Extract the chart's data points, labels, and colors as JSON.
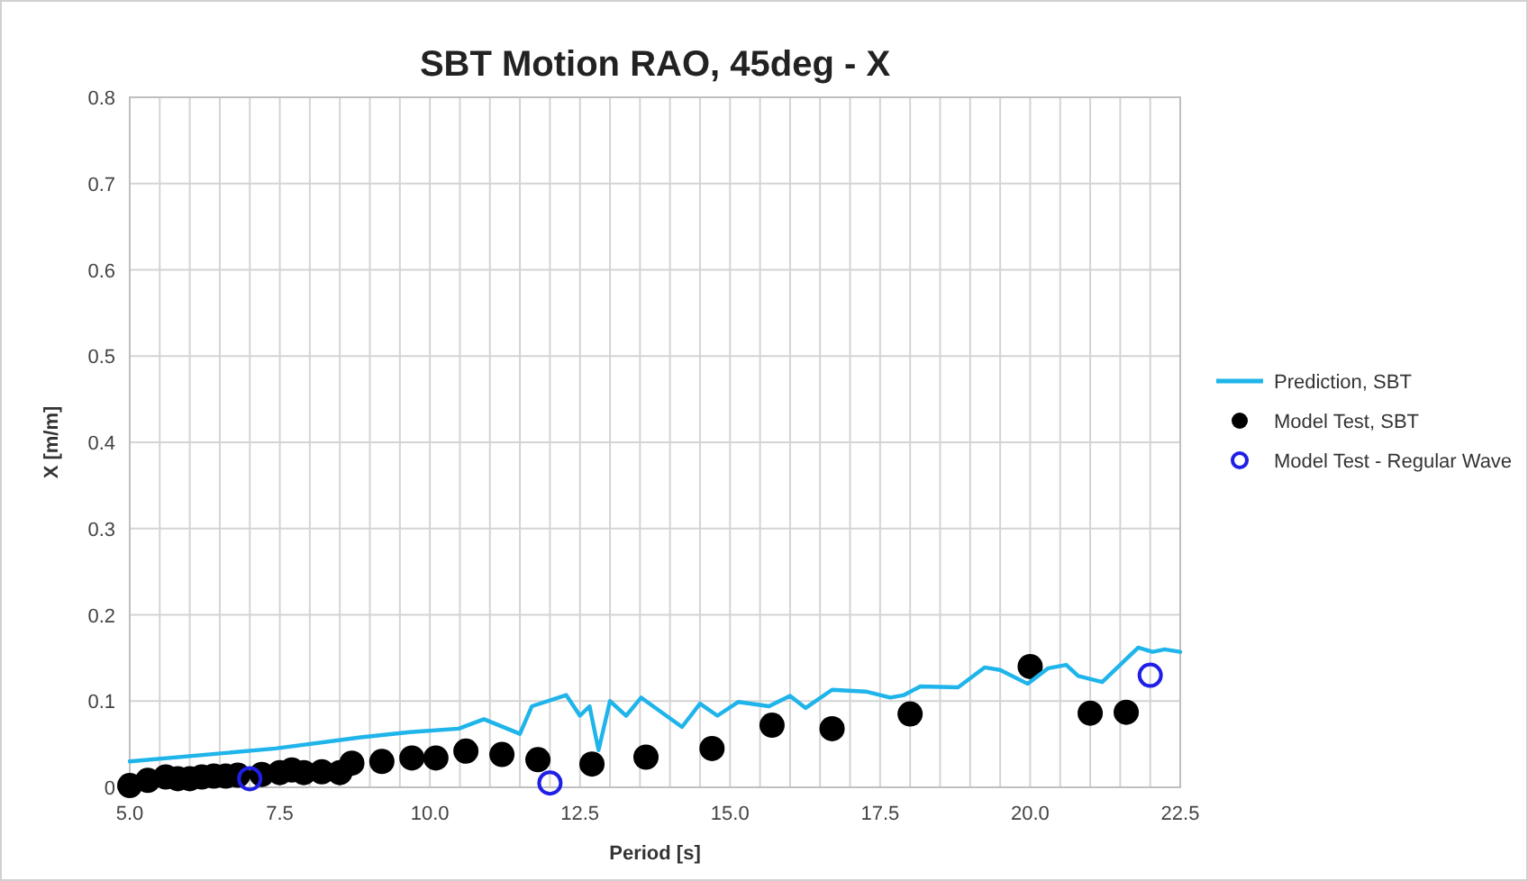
{
  "chart_data": {
    "type": "scatter",
    "title": "SBT Motion RAO, 45deg - X",
    "xlabel": "Period [s]",
    "ylabel": "X [m/m]",
    "xlim": [
      5,
      22.5
    ],
    "ylim": [
      0,
      0.8
    ],
    "xticks": [
      {
        "value": 5,
        "label": "5.0"
      },
      {
        "value": 5.5,
        "label": null
      },
      {
        "value": 6,
        "label": null
      },
      {
        "value": 6.5,
        "label": null
      },
      {
        "value": 7,
        "label": null
      },
      {
        "value": 7.5,
        "label": "7.5"
      },
      {
        "value": 8,
        "label": null
      },
      {
        "value": 8.5,
        "label": null
      },
      {
        "value": 9,
        "label": null
      },
      {
        "value": 9.5,
        "label": null
      },
      {
        "value": 10,
        "label": "10.0"
      },
      {
        "value": 10.5,
        "label": null
      },
      {
        "value": 11,
        "label": null
      },
      {
        "value": 11.5,
        "label": null
      },
      {
        "value": 12,
        "label": null
      },
      {
        "value": 12.5,
        "label": "12.5"
      },
      {
        "value": 13,
        "label": null
      },
      {
        "value": 13.5,
        "label": null
      },
      {
        "value": 14,
        "label": null
      },
      {
        "value": 14.5,
        "label": null
      },
      {
        "value": 15,
        "label": "15.0"
      },
      {
        "value": 15.5,
        "label": null
      },
      {
        "value": 16,
        "label": null
      },
      {
        "value": 16.5,
        "label": null
      },
      {
        "value": 17,
        "label": null
      },
      {
        "value": 17.5,
        "label": "17.5"
      },
      {
        "value": 18,
        "label": null
      },
      {
        "value": 18.5,
        "label": null
      },
      {
        "value": 19,
        "label": null
      },
      {
        "value": 19.5,
        "label": null
      },
      {
        "value": 20,
        "label": "20.0"
      },
      {
        "value": 20.5,
        "label": null
      },
      {
        "value": 21,
        "label": null
      },
      {
        "value": 21.5,
        "label": null
      },
      {
        "value": 22,
        "label": null
      },
      {
        "value": 22.5,
        "label": "22.5"
      }
    ],
    "yticks": [
      0,
      0.1,
      0.2,
      0.3,
      0.4,
      0.5,
      0.6,
      0.7,
      0.8
    ],
    "grid": true,
    "legend": "right",
    "series": [
      {
        "name": "Prediction, SBT",
        "type": "line",
        "color": "#1fb4ea",
        "x": [
          5,
          7.43,
          8.85,
          9.66,
          10.48,
          10.9,
          11.5,
          11.7,
          12.27,
          12.5,
          12.66,
          12.81,
          13.0,
          13.27,
          13.52,
          14.2,
          14.5,
          14.79,
          15.14,
          15.65,
          16.0,
          16.26,
          16.7,
          17.26,
          17.67,
          17.9,
          18.17,
          18.8,
          19.24,
          19.5,
          19.96,
          20.3,
          20.6,
          20.8,
          21.2,
          21.8,
          22.04,
          22.24,
          22.5
        ],
        "values": [
          0.03,
          0.045,
          0.058,
          0.064,
          0.068,
          0.079,
          0.062,
          0.094,
          0.107,
          0.083,
          0.094,
          0.043,
          0.1,
          0.083,
          0.104,
          0.07,
          0.097,
          0.083,
          0.099,
          0.094,
          0.106,
          0.092,
          0.113,
          0.111,
          0.104,
          0.107,
          0.117,
          0.116,
          0.139,
          0.136,
          0.12,
          0.138,
          0.142,
          0.129,
          0.122,
          0.162,
          0.157,
          0.16,
          0.157
        ]
      },
      {
        "name": "Model Test, SBT",
        "color": "#000000",
        "marker": "circle",
        "x": [
          5.0,
          5.3,
          5.6,
          5.8,
          6.0,
          6.2,
          6.4,
          6.6,
          6.8,
          7.2,
          7.5,
          7.7,
          7.9,
          8.2,
          8.5,
          8.7,
          9.2,
          9.7,
          10.1,
          10.6,
          11.2,
          11.8,
          12.7,
          13.6,
          14.7,
          15.7,
          16.7,
          18.0,
          20.0,
          21.0,
          21.6
        ],
        "values": [
          0.002,
          0.008,
          0.012,
          0.01,
          0.01,
          0.012,
          0.013,
          0.013,
          0.014,
          0.015,
          0.017,
          0.02,
          0.017,
          0.018,
          0.017,
          0.028,
          0.03,
          0.034,
          0.034,
          0.042,
          0.038,
          0.032,
          0.027,
          0.035,
          0.045,
          0.072,
          0.068,
          0.085,
          0.14,
          0.086,
          0.087
        ]
      },
      {
        "name": "Model Test - Regular Wave",
        "color": "#1f1fe6",
        "marker": "open-circle",
        "x": [
          7.0,
          12.0,
          22.0
        ],
        "values": [
          0.01,
          0.005,
          0.13
        ]
      }
    ]
  }
}
